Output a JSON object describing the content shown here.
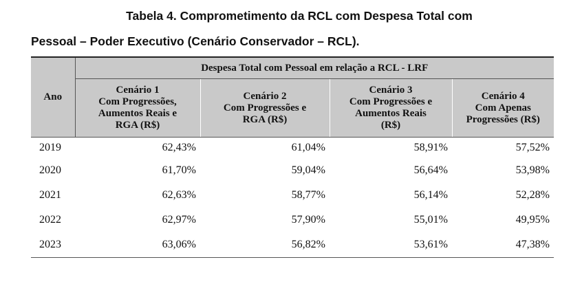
{
  "caption": {
    "line1": "Tabela 4. Comprometimento da RCL com Despesa Total com",
    "line2": "Pessoal – Poder Executivo (Cenário Conservador – RCL)."
  },
  "table": {
    "year_header": "Ano",
    "super_header": "Despesa Total com Pessoal em relação a RCL - LRF",
    "scenarios": [
      {
        "line1": "Cenário 1",
        "line2": "Com Progressões,",
        "line3": "Aumentos Reais e",
        "line4": "RGA (R$)"
      },
      {
        "line1": "Cenário 2",
        "line2": "Com Progressões e",
        "line3": "RGA (R$)",
        "line4": ""
      },
      {
        "line1": "Cenário 3",
        "line2": "Com Progressões e",
        "line3": "Aumentos Reais",
        "line4": "(R$)"
      },
      {
        "line1": "Cenário 4",
        "line2": "Com Apenas",
        "line3": "Progressões (R$)",
        "line4": ""
      }
    ],
    "rows": [
      {
        "year": "2019",
        "values": [
          "62,43%",
          "61,04%",
          "58,91%",
          "57,52%"
        ]
      },
      {
        "year": "2020",
        "values": [
          "61,70%",
          "59,04%",
          "56,64%",
          "53,98%"
        ]
      },
      {
        "year": "2021",
        "values": [
          "62,63%",
          "58,77%",
          "56,14%",
          "52,28%"
        ]
      },
      {
        "year": "2022",
        "values": [
          "62,97%",
          "57,90%",
          "55,01%",
          "49,95%"
        ]
      },
      {
        "year": "2023",
        "values": [
          "63,06%",
          "56,82%",
          "53,61%",
          "47,38%"
        ]
      }
    ]
  }
}
